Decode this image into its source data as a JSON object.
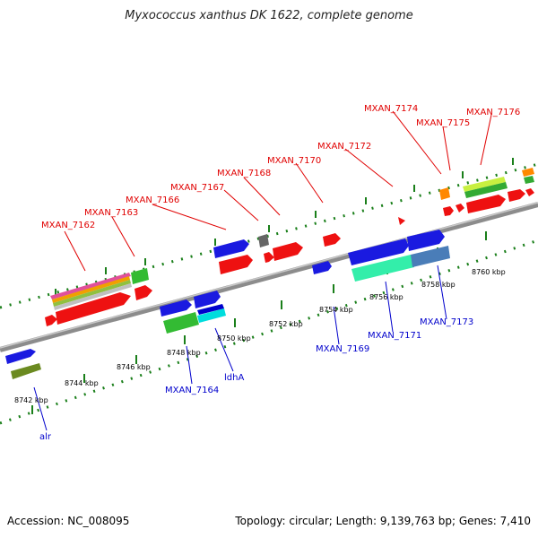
{
  "title": "Myxococcus xanthus DK 1622, complete genome",
  "footer": {
    "accession": "Accession: NC_008095",
    "summary": "Topology: circular; Length: 9,139,763 bp; Genes: 7,410"
  },
  "colors": {
    "backbone": "#8c8c8c",
    "tick": "#1a7f1a",
    "label_top": "#e00000",
    "label_bottom": "#0000cc"
  },
  "kbp_labels": [
    "8742 kbp",
    "8744 kbp",
    "8746 kbp",
    "8748 kbp",
    "8750 kbp",
    "8752 kbp",
    "8754 kbp",
    "8756 kbp",
    "8758 kbp",
    "8760 kbp"
  ],
  "gene_labels_top": [
    "MXAN_7162",
    "MXAN_7163",
    "MXAN_7166",
    "MXAN_7167",
    "MXAN_7168",
    "MXAN_7170",
    "MXAN_7172",
    "MXAN_7174",
    "MXAN_7175",
    "MXAN_7176"
  ],
  "gene_labels_bottom": [
    "alr",
    "MXAN_7164",
    "ldhA",
    "MXAN_7169",
    "MXAN_7171",
    "MXAN_7173"
  ]
}
